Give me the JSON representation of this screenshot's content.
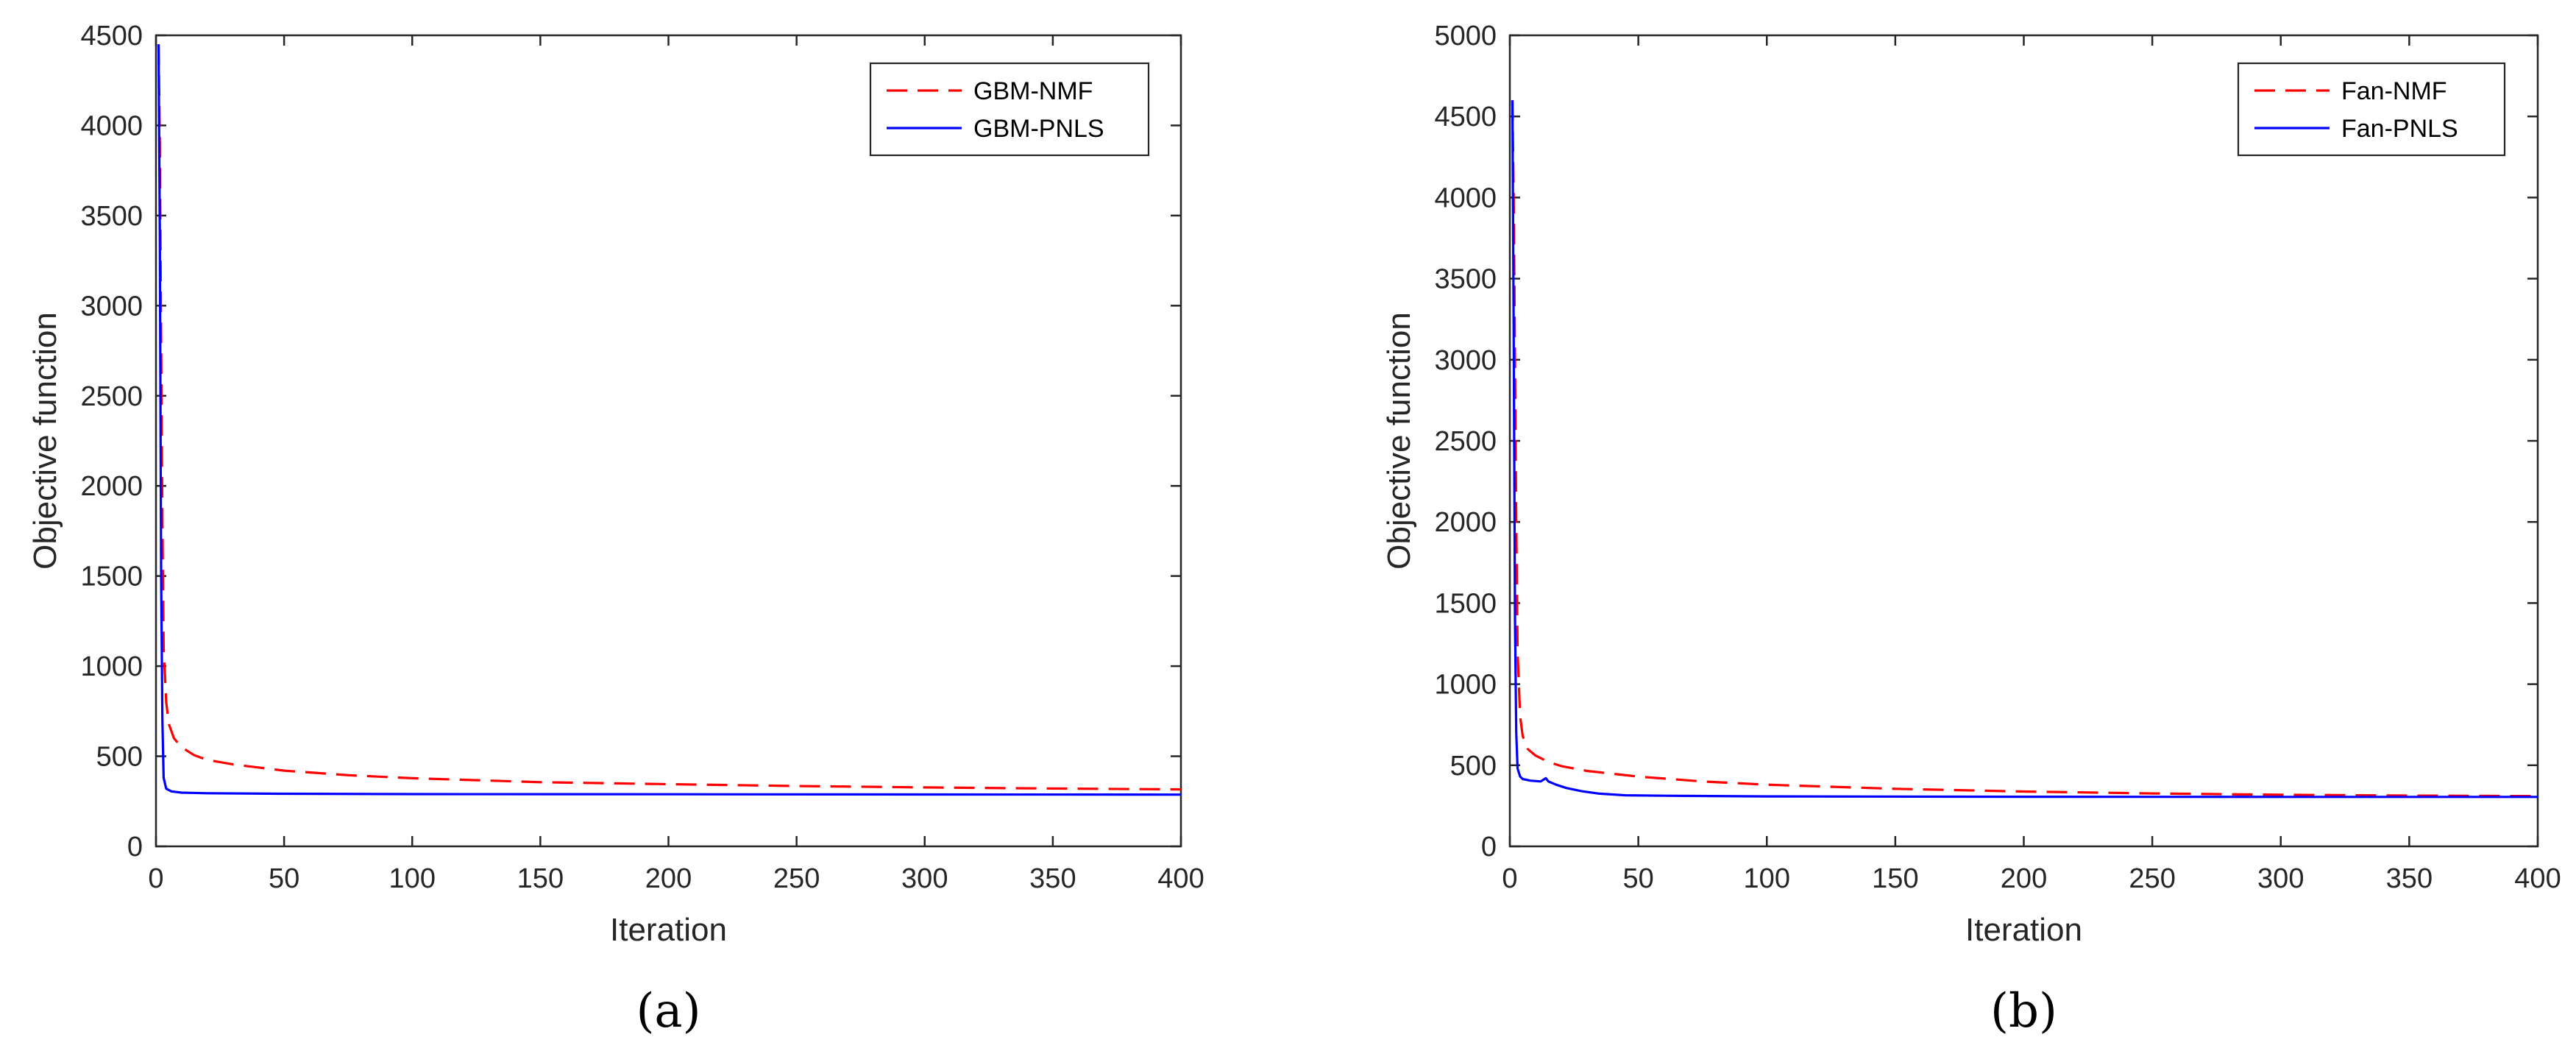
{
  "chart_data": [
    {
      "type": "line",
      "panel_label": "(a)",
      "xlabel": "Iteration",
      "ylabel": "Objective function",
      "xlim": [
        0,
        400
      ],
      "ylim": [
        0,
        4500
      ],
      "xticks": [
        0,
        50,
        100,
        150,
        200,
        250,
        300,
        350,
        400
      ],
      "yticks": [
        0,
        500,
        1000,
        1500,
        2000,
        2500,
        3000,
        3500,
        4000,
        4500
      ],
      "grid": false,
      "legend_position": "top-right",
      "series": [
        {
          "name": "GBM-NMF",
          "color": "#ff0000",
          "dash": true,
          "x": [
            1,
            1.5,
            2,
            2.5,
            3,
            4,
            5,
            7,
            10,
            15,
            20,
            30,
            50,
            75,
            100,
            150,
            200,
            250,
            300,
            350,
            400
          ],
          "y": [
            4450,
            3900,
            2800,
            1800,
            1100,
            800,
            680,
            600,
            550,
            505,
            480,
            455,
            420,
            395,
            378,
            356,
            345,
            335,
            327,
            321,
            316
          ]
        },
        {
          "name": "GBM-PNLS",
          "color": "#0000ff",
          "dash": false,
          "x": [
            1,
            1.5,
            2,
            2.5,
            3,
            4,
            6,
            10,
            20,
            50,
            100,
            200,
            300,
            400
          ],
          "y": [
            4450,
            3400,
            1500,
            700,
            380,
            320,
            305,
            298,
            295,
            292,
            290,
            289,
            288,
            287
          ]
        }
      ]
    },
    {
      "type": "line",
      "panel_label": "(b)",
      "xlabel": "Iteration",
      "ylabel": "Objective function",
      "xlim": [
        0,
        400
      ],
      "ylim": [
        0,
        5000
      ],
      "xticks": [
        0,
        50,
        100,
        150,
        200,
        250,
        300,
        350,
        400
      ],
      "yticks": [
        0,
        500,
        1000,
        1500,
        2000,
        2500,
        3000,
        3500,
        4000,
        4500,
        5000
      ],
      "grid": false,
      "legend_position": "top-right",
      "series": [
        {
          "name": "Fan-NMF",
          "color": "#ff0000",
          "dash": true,
          "x": [
            1,
            1.5,
            2,
            2.5,
            3,
            4,
            5,
            7,
            10,
            15,
            20,
            30,
            50,
            75,
            100,
            150,
            200,
            250,
            300,
            350,
            400
          ],
          "y": [
            4600,
            4000,
            3000,
            2000,
            1200,
            800,
            680,
            600,
            560,
            520,
            495,
            465,
            430,
            400,
            380,
            355,
            338,
            326,
            318,
            313,
            310
          ]
        },
        {
          "name": "Fan-PNLS",
          "color": "#0000ff",
          "dash": false,
          "x": [
            1,
            1.5,
            2,
            2.5,
            3,
            4,
            5,
            8,
            12,
            14,
            15,
            18,
            22,
            28,
            35,
            45,
            60,
            100,
            200,
            300,
            400
          ],
          "y": [
            4600,
            3200,
            1400,
            700,
            480,
            430,
            415,
            405,
            400,
            420,
            400,
            380,
            360,
            340,
            325,
            315,
            312,
            308,
            306,
            305,
            305
          ]
        }
      ]
    }
  ]
}
